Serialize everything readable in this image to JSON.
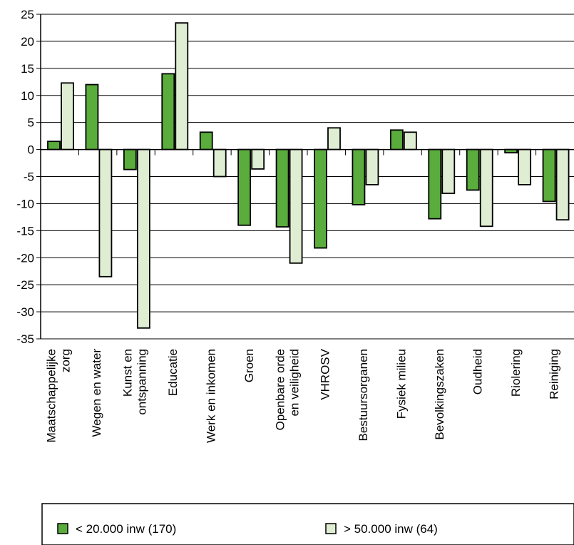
{
  "chart_data": {
    "type": "bar",
    "categories": [
      [
        "Maatschappelijke",
        "zorg"
      ],
      [
        "Wegen en water"
      ],
      [
        "Kunst en",
        "ontspanning"
      ],
      [
        "Educatie"
      ],
      [
        "Werk en inkomen"
      ],
      [
        "Groen"
      ],
      [
        "Openbare orde",
        "en veiligheid"
      ],
      [
        "VHROSV"
      ],
      [
        "Bestuursorganen"
      ],
      [
        "Fysiek milieu"
      ],
      [
        "Bevolkingszaken"
      ],
      [
        "Oudheid"
      ],
      [
        "Riolering"
      ],
      [
        "Reiniging"
      ]
    ],
    "series": [
      {
        "name": "< 20.000 inw (170)",
        "color": "#5aac3c",
        "values": [
          1.5,
          12,
          -3.7,
          14,
          3.2,
          -14,
          -14.3,
          -18.2,
          -10.2,
          3.6,
          -12.8,
          -7.5,
          -0.6,
          -9.6
        ]
      },
      {
        "name": "> 50.000 inw (64)",
        "color": "#dfeed3",
        "values": [
          12.3,
          -23.5,
          -33,
          23.4,
          -5,
          -3.6,
          -21,
          4,
          -6.5,
          3.2,
          -8.1,
          -14.2,
          -6.5,
          -13
        ]
      }
    ],
    "ylim": [
      -35,
      25
    ],
    "yticks": [
      25,
      20,
      15,
      10,
      5,
      0,
      -5,
      -10,
      -15,
      -20,
      -25,
      -30,
      -35
    ],
    "grid": true,
    "legend_position": "bottom"
  }
}
